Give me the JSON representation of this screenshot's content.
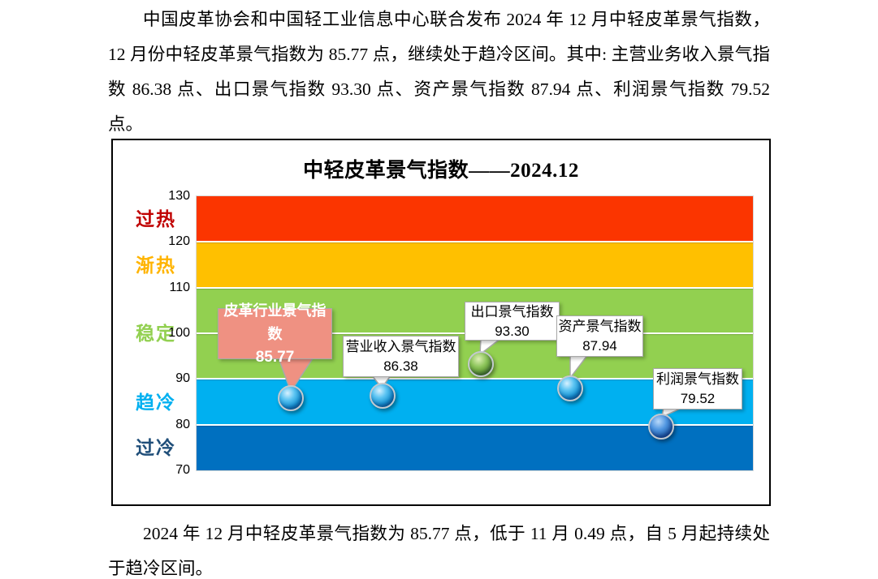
{
  "document": {
    "paragraph_top": "中国皮革协会和中国轻工业信息中心联合发布 2024 年 12 月中轻皮革景气指数，12 月份中轻皮革景气指数为 85.77 点，继续处于趋冷区间。其中: 主营业务收入景气指数 86.38 点、出口景气指数 93.30 点、资产景气指数 87.94 点、利润景气指数 79.52 点。",
    "paragraph_bottom": "2024 年 12 月中轻皮革景气指数为 85.77 点，低于 11 月 0.49 点，自 5 月起持续处于趋冷区间。"
  },
  "chart_data": {
    "type": "scatter",
    "title": "中轻皮革景气指数——2024.12",
    "xlabel": "",
    "ylabel": "",
    "ylim": [
      70,
      130
    ],
    "yticks": [
      130,
      120,
      110,
      100,
      90,
      80,
      70
    ],
    "gridlines": [
      120,
      110,
      100,
      90,
      80
    ],
    "grid_color": "#ffffff",
    "legend_position": "none",
    "zones": [
      {
        "label": "过热",
        "from": 120,
        "to": 130,
        "band_color": "#fb3500",
        "label_color": "#c00000"
      },
      {
        "label": "渐热",
        "from": 110,
        "to": 120,
        "band_color": "#ffc000",
        "label_color": "#ffb400"
      },
      {
        "label": "稳定",
        "from": 90,
        "to": 110,
        "band_color": "#92d050",
        "label_color": "#92d050"
      },
      {
        "label": "趋冷",
        "from": 80,
        "to": 90,
        "band_color": "#00b0f0",
        "label_color": "#00b0f0"
      },
      {
        "label": "过冷",
        "from": 70,
        "to": 80,
        "band_color": "#0070c0",
        "label_color": "#1f4e79"
      }
    ],
    "points": [
      {
        "label": "皮革行业景气指数",
        "value": 85.77,
        "display": "85.77",
        "marker_color": "cyan",
        "callout_style": "salmon"
      },
      {
        "label": "营业收入景气指数",
        "value": 86.38,
        "display": "86.38",
        "marker_color": "cyan",
        "callout_style": "white"
      },
      {
        "label": "出口景气指数",
        "value": 93.3,
        "display": "93.30",
        "marker_color": "green",
        "callout_style": "white"
      },
      {
        "label": "资产景气指数",
        "value": 87.94,
        "display": "87.94",
        "marker_color": "cyan",
        "callout_style": "white"
      },
      {
        "label": "利润景气指数",
        "value": 79.52,
        "display": "79.52",
        "marker_color": "mblue",
        "callout_style": "white"
      }
    ]
  }
}
